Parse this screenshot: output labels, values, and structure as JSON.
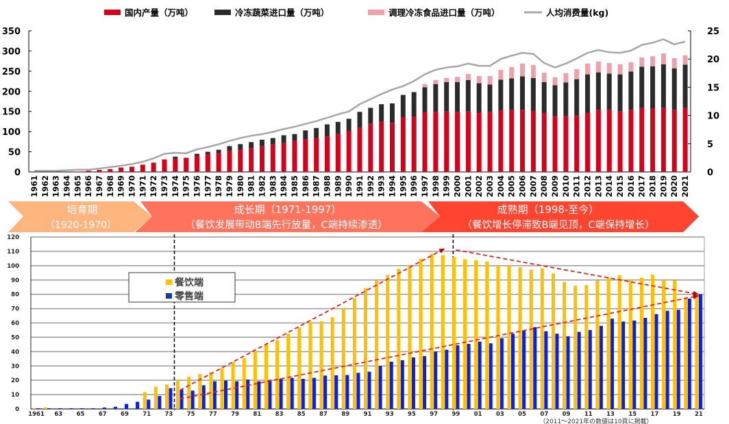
{
  "chart_data": [
    {
      "type": "bar",
      "stacked": true,
      "secondary_line": true,
      "categories": [
        "1961",
        "1962",
        "1963",
        "1964",
        "1965",
        "1966",
        "1967",
        "1968",
        "1969",
        "1970",
        "1971",
        "1972",
        "1973",
        "1974",
        "1975",
        "1976",
        "1977",
        "1978",
        "1979",
        "1980",
        "1981",
        "1982",
        "1983",
        "1984",
        "1985",
        "1986",
        "1987",
        "1988",
        "1989",
        "1990",
        "1991",
        "1992",
        "1993",
        "1994",
        "1995",
        "1996",
        "1997",
        "1998",
        "1999",
        "2000",
        "2001",
        "2002",
        "2003",
        "2004",
        "2005",
        "2006",
        "2007",
        "2008",
        "2009",
        "2010",
        "2011",
        "2012",
        "2013",
        "2014",
        "2015",
        "2016",
        "2017",
        "2018",
        "2019",
        "2020",
        "2021"
      ],
      "ylim": [
        0,
        350
      ],
      "yticks": [
        "0",
        "50",
        "100",
        "150",
        "200",
        "250",
        "300",
        "350"
      ],
      "y2lim": [
        0,
        25
      ],
      "y2ticks": [
        "0",
        "5",
        "10",
        "15",
        "20",
        "25"
      ],
      "legend_position": "top",
      "grid": false,
      "series": [
        {
          "name": "国内产量（万吨）",
          "color": "#D7001B",
          "axis": "left",
          "values": [
            0,
            0,
            0,
            0,
            1,
            3,
            5,
            7,
            11,
            13,
            18,
            23,
            31,
            33,
            35,
            40,
            44,
            47,
            52,
            56,
            59,
            64,
            69,
            72,
            77,
            81,
            84,
            88,
            94,
            101,
            109,
            120,
            125,
            122,
            136,
            137,
            148,
            149,
            150,
            149,
            150,
            147,
            149,
            153,
            154,
            154,
            152,
            147,
            138,
            138,
            140,
            147,
            154,
            154,
            150,
            154,
            159,
            157,
            159,
            154,
            159
          ]
        },
        {
          "name": "冷冻蔬菜进口量（万吨）",
          "color": "#2B2B2B",
          "axis": "left",
          "values": [
            0,
            0,
            0,
            0,
            0,
            0,
            0,
            0,
            0,
            0,
            0,
            0,
            0,
            5,
            0,
            5,
            6,
            8,
            12,
            13,
            15,
            16,
            15,
            19,
            17,
            22,
            25,
            30,
            30,
            31,
            40,
            39,
            43,
            48,
            55,
            61,
            62,
            69,
            73,
            74,
            78,
            73,
            68,
            76,
            78,
            83,
            81,
            76,
            77,
            84,
            90,
            95,
            93,
            90,
            92,
            95,
            102,
            105,
            108,
            103,
            107
          ]
        },
        {
          "name": "调理冷冻食品进口量（万吨）",
          "color": "#EFA0AA",
          "axis": "left",
          "values": [
            0,
            0,
            0,
            0,
            0,
            0,
            0,
            0,
            0,
            0,
            0,
            0,
            0,
            0,
            0,
            0,
            0,
            0,
            0,
            0,
            0,
            0,
            0,
            0,
            0,
            0,
            0,
            0,
            0,
            0,
            0,
            0,
            0,
            0,
            0,
            0,
            8,
            10,
            10,
            13,
            15,
            18,
            21,
            24,
            28,
            32,
            32,
            23,
            20,
            23,
            25,
            27,
            27,
            26,
            25,
            23,
            23,
            25,
            27,
            25,
            23
          ]
        },
        {
          "name": "人均消费量(kg)",
          "type": "line",
          "color": "#A6A6A6",
          "axis": "right",
          "values": [
            0.2,
            0.2,
            0.2,
            0.3,
            0.4,
            0.4,
            0.6,
            0.85,
            1.1,
            1.4,
            1.8,
            2.4,
            3.2,
            3.4,
            3.3,
            4.0,
            4.4,
            4.9,
            5.5,
            6.0,
            6.4,
            6.7,
            7.1,
            7.6,
            8.0,
            8.5,
            9.0,
            9.6,
            10.2,
            10.7,
            12.0,
            12.9,
            13.8,
            14.6,
            15.2,
            16.1,
            17.3,
            18.1,
            18.5,
            18.7,
            19.2,
            18.8,
            18.8,
            20.0,
            20.6,
            21.1,
            20.9,
            19.3,
            18.5,
            19.2,
            20.1,
            21.1,
            21.6,
            21.2,
            21.1,
            21.5,
            22.5,
            22.9,
            23.5,
            22.6,
            23.1
          ]
        }
      ]
    },
    {
      "type": "bar",
      "categories": [
        "1961",
        "1962",
        "1963",
        "1964",
        "1965",
        "1966",
        "1967",
        "1968",
        "1969",
        "1970",
        "1971",
        "1972",
        "1973",
        "1974",
        "1975",
        "1976",
        "1977",
        "1978",
        "1979",
        "1980",
        "1981",
        "1982",
        "1983",
        "1984",
        "1985",
        "1986",
        "1987",
        "1988",
        "1989",
        "1990",
        "1991",
        "1992",
        "1993",
        "1994",
        "1995",
        "1996",
        "1997",
        "1998",
        "1999",
        "2000",
        "2001",
        "2002",
        "2003",
        "2004",
        "2005",
        "2006",
        "2007",
        "2008",
        "2009",
        "2010",
        "2011",
        "2012",
        "2013",
        "2014",
        "2015",
        "2016",
        "2017",
        "2018",
        "2019",
        "2020",
        "2021"
      ],
      "xtick_labels": [
        "1961",
        "63",
        "65",
        "67",
        "69",
        "71",
        "73",
        "75",
        "77",
        "79",
        "81",
        "83",
        "85",
        "87",
        "89",
        "91",
        "93",
        "95",
        "97",
        "99",
        "01",
        "03",
        "05",
        "07",
        "09",
        "11",
        "13",
        "15",
        "17",
        "19",
        "21"
      ],
      "ylim": [
        0,
        120
      ],
      "yticks": [
        "0",
        "10",
        "20",
        "30",
        "40",
        "50",
        "60",
        "70",
        "80",
        "90",
        "100",
        "110",
        "120"
      ],
      "grid": true,
      "legend_position": "top-left",
      "series": [
        {
          "name": "餐饮端",
          "color": "#FFC000",
          "values": [
            0.5,
            1,
            0,
            0,
            0,
            0,
            0,
            0,
            0,
            0,
            11.7,
            15.5,
            17,
            20.5,
            22.5,
            24.5,
            25.6,
            28.4,
            32.8,
            35.4,
            40.5,
            45,
            48,
            52.5,
            56.8,
            60.7,
            61.2,
            64,
            70.6,
            77.3,
            84.3,
            90,
            93.5,
            97.9,
            100.2,
            104.7,
            108.3,
            107.3,
            106,
            104.4,
            103.8,
            102.8,
            100,
            100,
            98.9,
            97.2,
            98.2,
            94.6,
            88.7,
            86,
            86.5,
            89.6,
            91.7,
            93.3,
            90,
            91.7,
            93.6,
            90,
            89.7,
            78,
            80
          ]
        },
        {
          "name": "零售端",
          "color": "#0A1EF0",
          "values": [
            0.5,
            0.5,
            0.5,
            0.5,
            0.5,
            0.5,
            1,
            1.5,
            3.5,
            5,
            6.5,
            9,
            14.5,
            13.5,
            12.8,
            16.5,
            19.3,
            19.8,
            19.3,
            20.5,
            19.3,
            20.3,
            21.2,
            21.7,
            21,
            21.7,
            23.3,
            23.5,
            23.7,
            25.2,
            26,
            30,
            33,
            34,
            36,
            36.9,
            40,
            41.3,
            44.4,
            45.4,
            47,
            45.8,
            49.3,
            52.5,
            54.8,
            57.1,
            54.2,
            52.5,
            50.7,
            53.8,
            55.1,
            58,
            63,
            61,
            61.7,
            63.6,
            66.2,
            68.5,
            69.2,
            77,
            80
          ]
        }
      ],
      "trend_arrows": [
        {
          "from": [
            "1974",
            13
          ],
          "to": [
            "1998",
            112
          ]
        },
        {
          "from": [
            "1999",
            111
          ],
          "to": [
            "2021",
            80
          ]
        },
        {
          "from": [
            "1974",
            7
          ],
          "to": [
            "2021",
            79
          ]
        }
      ],
      "divider_years": [
        "1973/1974",
        "1998/1999"
      ],
      "footnote": "（2011～2021年の数値は10頁に掲載）"
    }
  ],
  "phases": [
    {
      "title": "培育期",
      "subtitle": "（1920-1970）",
      "color": "#FFB57D"
    },
    {
      "title": "成长期（1971-1997）",
      "subtitle": "（餐饮发展带动B端先行放量，C端持续渗透）",
      "color": "#FF735C"
    },
    {
      "title": "成熟期（1998-至今）",
      "subtitle": "（餐饮增长停滞致B端见顶，C端保持增长）",
      "color": "#FF4530"
    }
  ]
}
